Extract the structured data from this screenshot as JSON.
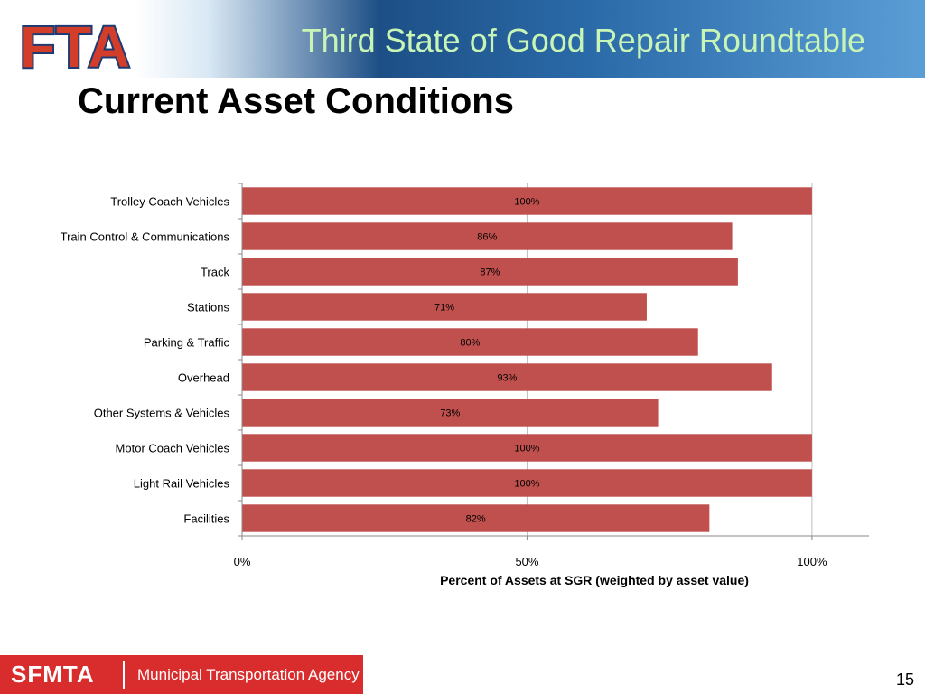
{
  "header": {
    "logo_text": "FTA",
    "deck_title": "Third State of Good Repair Roundtable"
  },
  "slide": {
    "title": "Current Asset Conditions",
    "page_number": "15"
  },
  "footer": {
    "brand": "SFMTA",
    "agency": "Municipal Transportation Agency"
  },
  "colors": {
    "bar": "#c0504d",
    "title_accent": "#c8f5b6",
    "footer_red": "#d92d2d"
  },
  "chart_data": {
    "type": "bar",
    "orientation": "horizontal",
    "categories": [
      "Trolley Coach Vehicles",
      "Train Control & Communications",
      "Track",
      "Stations",
      "Parking & Traffic",
      "Overhead",
      "Other Systems & Vehicles",
      "Motor Coach Vehicles",
      "Light Rail Vehicles",
      "Facilities"
    ],
    "values": [
      100,
      86,
      87,
      71,
      80,
      93,
      73,
      100,
      100,
      82
    ],
    "data_labels": [
      "100%",
      "86%",
      "87%",
      "71%",
      "80%",
      "93%",
      "73%",
      "100%",
      "100%",
      "82%"
    ],
    "xlim": [
      0,
      110
    ],
    "x_ticks": [
      0,
      50,
      100
    ],
    "x_tick_labels": [
      "0%",
      "50%",
      "100%"
    ],
    "xlabel": "Percent of Assets at SGR (weighted by asset value)",
    "ylabel": "",
    "title": "",
    "legend": "none",
    "grid": "vertical-major"
  }
}
